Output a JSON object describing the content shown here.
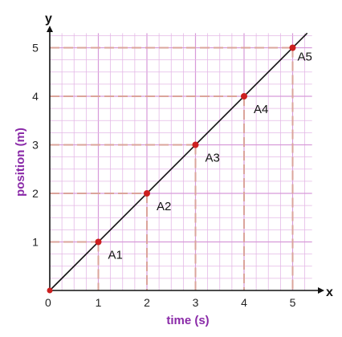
{
  "chart_data": {
    "type": "line",
    "title": "",
    "xlabel": "time (s)",
    "ylabel": "position (m)",
    "x_axis_letter": "x",
    "y_axis_letter": "y",
    "origin_label": "0",
    "xlim": [
      0,
      5.4
    ],
    "ylim": [
      0,
      5.3
    ],
    "x_ticks": [
      "1",
      "2",
      "3",
      "4",
      "5"
    ],
    "y_ticks": [
      "1",
      "2",
      "3",
      "4",
      "5"
    ],
    "grid": true,
    "minor_grid_step": 0.25,
    "series": [
      {
        "x": [
          0,
          1,
          2,
          3,
          4,
          5
        ],
        "y": [
          0,
          1,
          2,
          3,
          4,
          5
        ],
        "extends_to_x": 5.3
      }
    ],
    "points": [
      {
        "label": "A1",
        "x": 1,
        "y": 1
      },
      {
        "label": "A2",
        "x": 2,
        "y": 2
      },
      {
        "label": "A3",
        "x": 3,
        "y": 3
      },
      {
        "label": "A4",
        "x": 4,
        "y": 4
      },
      {
        "label": "A5",
        "x": 5,
        "y": 5
      }
    ],
    "colors": {
      "grid": "#e4b8e6",
      "grid_major": "#d79ad9",
      "guide_dash": "#dba49b",
      "line": "#111111",
      "point": "#cc1f1f",
      "axis_title": "#8a2aa8",
      "axis": "#111111"
    }
  }
}
